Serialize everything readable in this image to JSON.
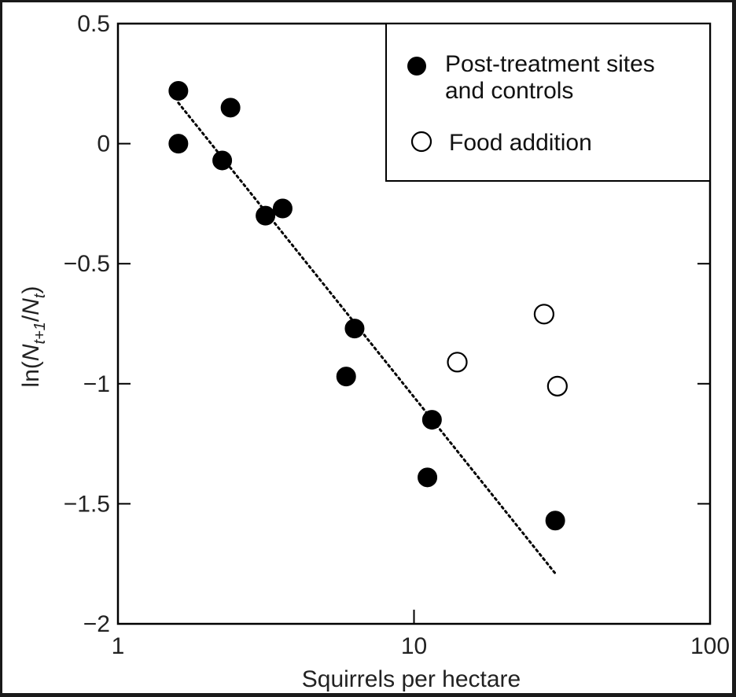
{
  "chart_data": {
    "type": "scatter",
    "xlabel": "Squirrels per hectare",
    "ylabel": {
      "prefix": "ln(",
      "n1": "N",
      "sub1": "t+1",
      "slash": "/",
      "n2": "N",
      "sub2": "t",
      "suffix": ")"
    },
    "x_scale": "log",
    "xlim": [
      1,
      100
    ],
    "ylim": [
      -2,
      0.5
    ],
    "x_ticks": [
      1,
      10,
      100
    ],
    "x_tick_labels": [
      "1",
      "10",
      "100"
    ],
    "y_ticks": [
      0.5,
      0,
      -0.5,
      -1,
      -1.5,
      -2
    ],
    "y_tick_labels": [
      "0.5",
      "0",
      "−0.5",
      "−1",
      "−1.5",
      "−2"
    ],
    "grid": false,
    "legend_position": "top-right",
    "series": [
      {
        "name": "Post-treatment sites and controls",
        "legend_lines": [
          "Post-treatment sites",
          "and controls"
        ],
        "marker": "filled-circle",
        "color": "#000000",
        "points": [
          {
            "x": 1.6,
            "y": 0.22
          },
          {
            "x": 1.6,
            "y": 0.0
          },
          {
            "x": 2.4,
            "y": 0.15
          },
          {
            "x": 2.25,
            "y": -0.07
          },
          {
            "x": 3.15,
            "y": -0.3
          },
          {
            "x": 3.6,
            "y": -0.27
          },
          {
            "x": 6.3,
            "y": -0.77
          },
          {
            "x": 5.9,
            "y": -0.97
          },
          {
            "x": 11.5,
            "y": -1.15
          },
          {
            "x": 11.1,
            "y": -1.39
          },
          {
            "x": 30.0,
            "y": -1.57
          }
        ]
      },
      {
        "name": "Food addition",
        "legend_lines": [
          "Food addition"
        ],
        "marker": "open-circle",
        "color": "#000000",
        "points": [
          {
            "x": 14.0,
            "y": -0.91
          },
          {
            "x": 27.5,
            "y": -0.71
          },
          {
            "x": 30.5,
            "y": -1.01
          }
        ]
      }
    ],
    "fit_line": {
      "style": "dotted",
      "from": {
        "x": 1.6,
        "y": 0.17
      },
      "to": {
        "x": 30.0,
        "y": -1.79
      }
    }
  }
}
